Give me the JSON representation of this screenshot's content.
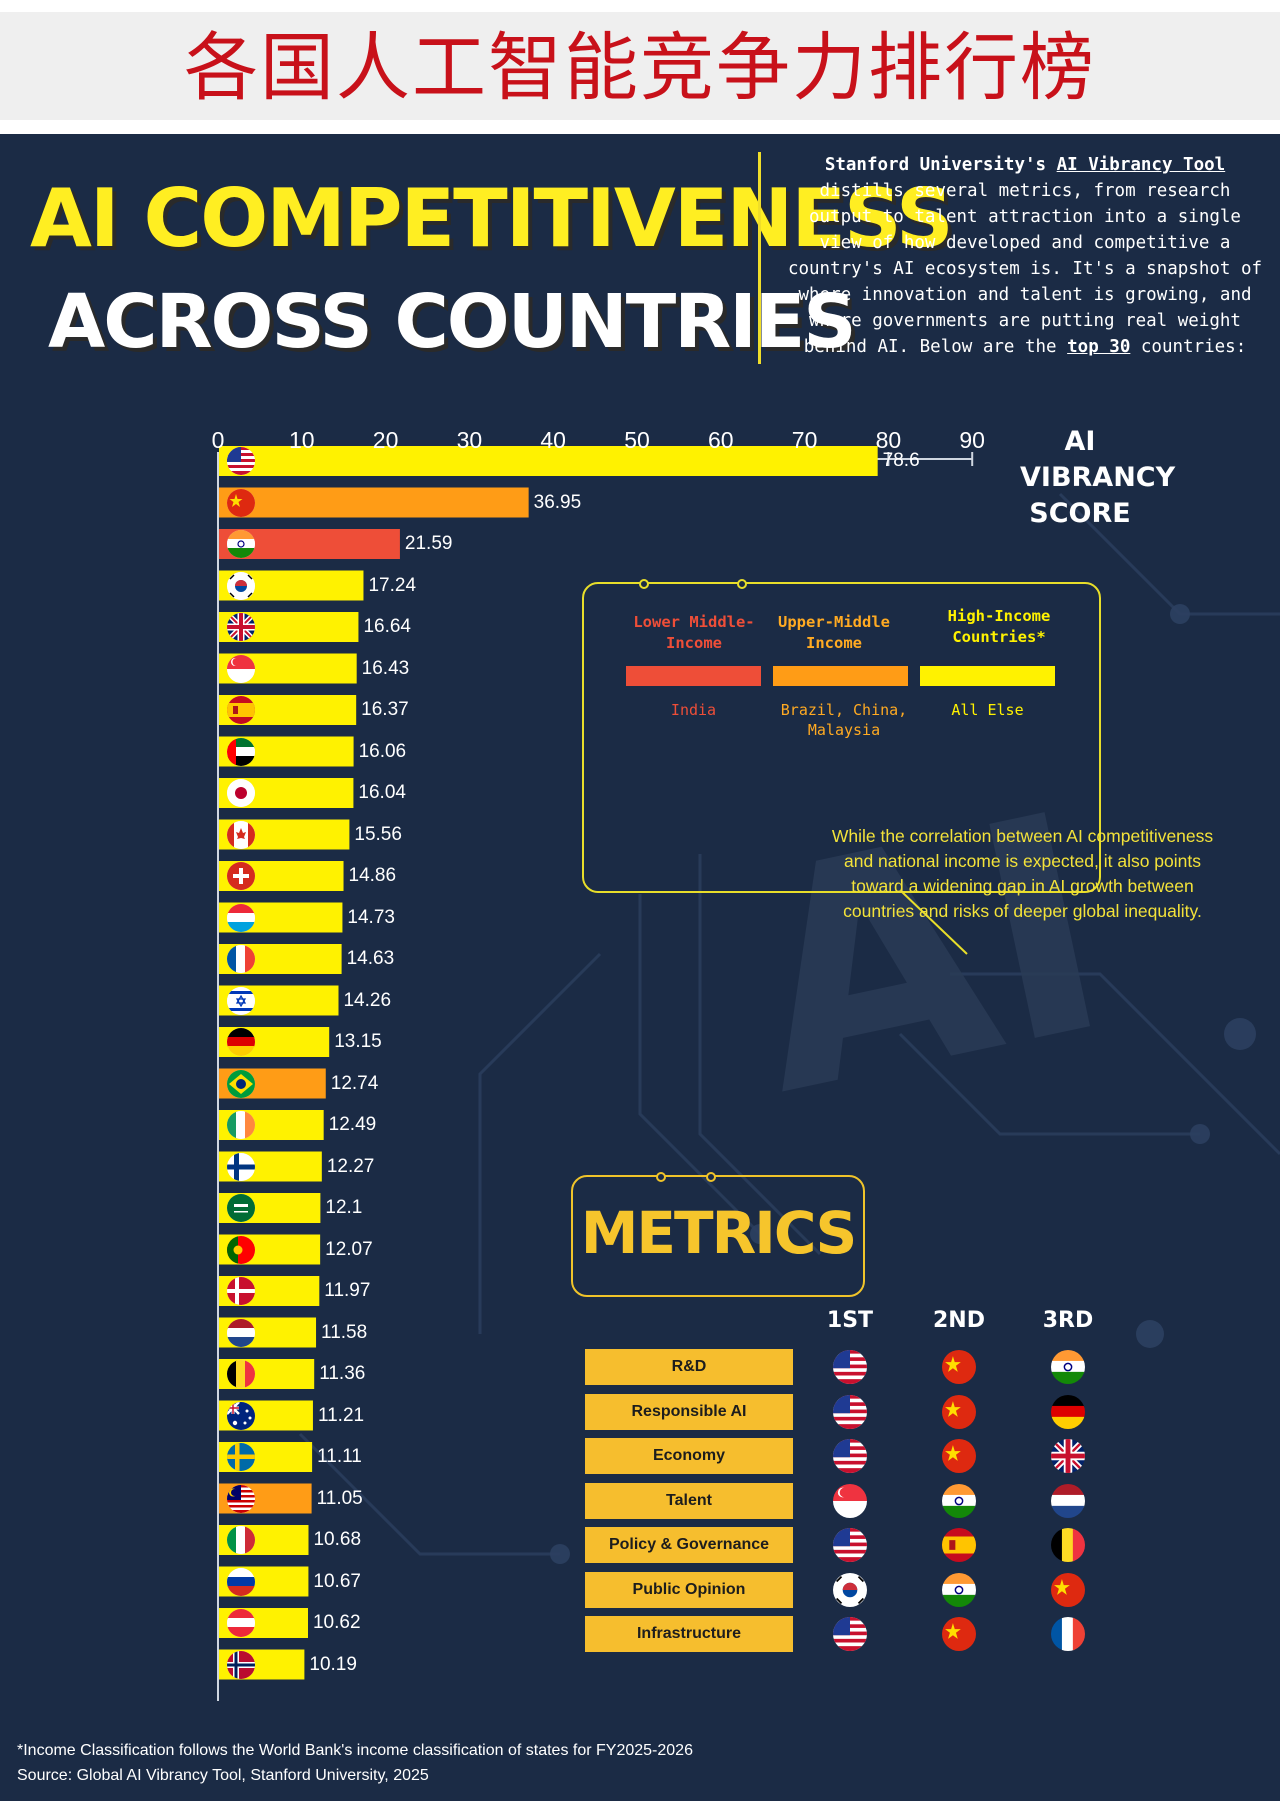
{
  "top_banner": {
    "title": "各国人工智能竞争力排行榜"
  },
  "headline": {
    "line1": "AI COMPETITIVENESS",
    "line2": "ACROSS COUNTRIES"
  },
  "intro": {
    "p1": "Stanford University's ",
    "tool_name": "AI Vibrancy Tool",
    "p2": " distills several metrics, from research output to talent attraction into a single view of how developed and competitive a country's AI ecosystem is. It's a snapshot of where innovation and talent is growing, and where governments are putting real weight behind AI. Below are the ",
    "top_label": "top 30",
    "p3": " countries:"
  },
  "score_title": [
    "AI",
    "VIBRANCY",
    "SCORE"
  ],
  "colors": {
    "high": "#fff200",
    "upper_middle": "#ff9c16",
    "lower_middle": "#ee4e38",
    "background": "#1b2b45",
    "accent": "#f6be2e"
  },
  "chart_data": {
    "type": "bar",
    "orientation": "horizontal",
    "title": "AI Vibrancy Score",
    "xlabel": "AI VIBRANCY SCORE",
    "xlim": [
      0,
      90
    ],
    "xticks": [
      0,
      10,
      20,
      30,
      40,
      50,
      60,
      70,
      80,
      90
    ],
    "categories": [
      "USA",
      "China",
      "India",
      "South Korea",
      "UK",
      "Singapore",
      "Spain",
      "UAE",
      "Japan",
      "Canada",
      "Switzerland",
      "Luxembourg",
      "France",
      "Israel",
      "Germany",
      "Brazil",
      "Ireland",
      "Finland",
      "Saudi Arabia",
      "Portugal",
      "Denmark",
      "Netherlands",
      "Belgium",
      "Australia",
      "Sweden",
      "Malaysia",
      "Italy",
      "Russia",
      "Austria",
      "Norway"
    ],
    "values": [
      78.6,
      36.95,
      21.59,
      17.24,
      16.64,
      16.43,
      16.37,
      16.06,
      16.04,
      15.56,
      14.86,
      14.73,
      14.63,
      14.26,
      13.15,
      12.74,
      12.49,
      12.27,
      12.1,
      12.07,
      11.97,
      11.58,
      11.36,
      11.21,
      11.11,
      11.05,
      10.68,
      10.67,
      10.62,
      10.19
    ],
    "value_labels": [
      "78.6",
      "36.95",
      "21.59",
      "17.24",
      "16.64",
      "16.43",
      "16.37",
      "16.06",
      "16.04",
      "15.56",
      "14.86",
      "14.73",
      "14.63",
      "14.26",
      "13.15",
      "12.74",
      "12.49",
      "12.27",
      "12.1",
      "12.07",
      "11.97",
      "11.58",
      "11.36",
      "11.21",
      "11.11",
      "11.05",
      "10.68",
      "10.67",
      "10.62",
      "10.19"
    ],
    "income_groups": [
      "high",
      "upper_middle",
      "lower_middle",
      "high",
      "high",
      "high",
      "high",
      "high",
      "high",
      "high",
      "high",
      "high",
      "high",
      "high",
      "high",
      "upper_middle",
      "high",
      "high",
      "high",
      "high",
      "high",
      "high",
      "high",
      "high",
      "high",
      "upper_middle",
      "high",
      "high",
      "high",
      "high"
    ],
    "flags": [
      "us-flag-icon",
      "cn-flag-icon",
      "in-flag-icon",
      "kr-flag-icon",
      "gb-flag-icon",
      "sg-flag-icon",
      "es-flag-icon",
      "ae-flag-icon",
      "jp-flag-icon",
      "ca-flag-icon",
      "ch-flag-icon",
      "lu-flag-icon",
      "fr-flag-icon",
      "il-flag-icon",
      "de-flag-icon",
      "br-flag-icon",
      "ie-flag-icon",
      "fi-flag-icon",
      "sa-flag-icon",
      "pt-flag-icon",
      "dk-flag-icon",
      "nl-flag-icon",
      "be-flag-icon",
      "au-flag-icon",
      "se-flag-icon",
      "my-flag-icon",
      "it-flag-icon",
      "ru-flag-icon",
      "at-flag-icon",
      "no-flag-icon"
    ]
  },
  "legend": {
    "lower": {
      "title": "Lower Middle-Income",
      "note": "India"
    },
    "upper": {
      "title": "Upper-Middle Income",
      "note": "Brazil, China, Malaysia"
    },
    "high": {
      "title": "High-Income Countries*",
      "note": "All Else"
    }
  },
  "correlation_note": "While the correlation between AI competitiveness and national income is expected, it also points toward a widening gap in AI growth between countries and risks of deeper global inequality.",
  "metrics": {
    "title": "METRICS",
    "rank_headers": [
      "1ST",
      "2ND",
      "3RD"
    ],
    "rows": [
      {
        "label": "R&D",
        "flags": [
          "us-flag-icon",
          "cn-flag-icon",
          "in-flag-icon"
        ]
      },
      {
        "label": "Responsible AI",
        "flags": [
          "us-flag-icon",
          "cn-flag-icon",
          "de-flag-icon"
        ]
      },
      {
        "label": "Economy",
        "flags": [
          "us-flag-icon",
          "cn-flag-icon",
          "gb-flag-icon"
        ]
      },
      {
        "label": "Talent",
        "flags": [
          "sg-flag-icon",
          "in-flag-icon",
          "nl-flag-icon"
        ]
      },
      {
        "label": "Policy & Governance",
        "flags": [
          "us-flag-icon",
          "es-flag-icon",
          "be-flag-icon"
        ]
      },
      {
        "label": "Public Opinion",
        "flags": [
          "kr-flag-icon",
          "in-flag-icon",
          "cn-flag-icon"
        ]
      },
      {
        "label": "Infrastructure",
        "flags": [
          "us-flag-icon",
          "cn-flag-icon",
          "fr-flag-icon"
        ]
      }
    ]
  },
  "footnote": {
    "line1": "*Income Classification follows the World Bank's income classification of states for FY2025-2026",
    "line2": "Source: Global AI Vibrancy Tool, Stanford University, 2025"
  }
}
